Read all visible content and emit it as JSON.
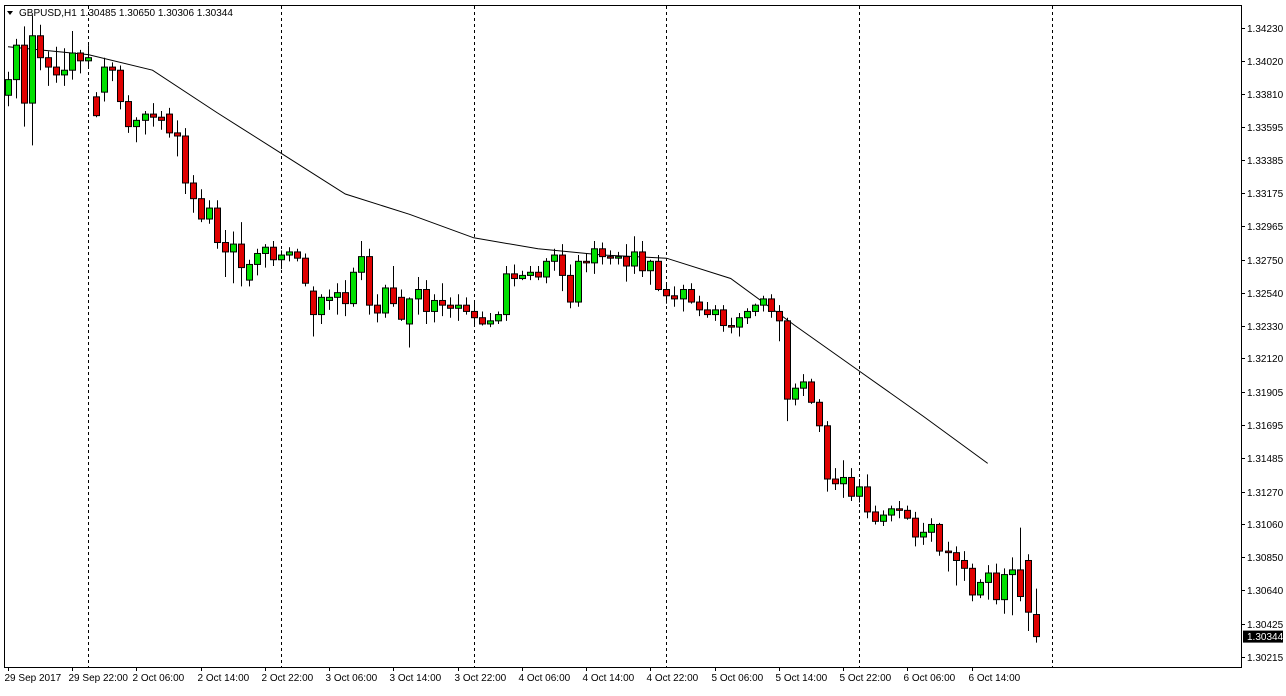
{
  "window": {
    "symbol_label": "GBPUSD,H1",
    "ohlc_label": "1.30485 1.30650 1.30306 1.30344",
    "current_price_label": "1.30344"
  },
  "chart_data": {
    "type": "candlestick",
    "symbol": "GBPUSD",
    "timeframe": "H1",
    "ylim": [
      1.3015,
      1.3437
    ],
    "price_ticks": [
      "1.34230",
      "1.34020",
      "1.33810",
      "1.33595",
      "1.33385",
      "1.33175",
      "1.32965",
      "1.32750",
      "1.32540",
      "1.32330",
      "1.32120",
      "1.31905",
      "1.31695",
      "1.31485",
      "1.31270",
      "1.31060",
      "1.30850",
      "1.30640",
      "1.30425",
      "1.30215"
    ],
    "time_ticks": [
      "29 Sep 2017",
      "29 Sep 22:00",
      "2 Oct 06:00",
      "2 Oct 14:00",
      "2 Oct 22:00",
      "3 Oct 06:00",
      "3 Oct 14:00",
      "3 Oct 22:00",
      "4 Oct 06:00",
      "4 Oct 14:00",
      "4 Oct 22:00",
      "5 Oct 06:00",
      "5 Oct 14:00",
      "5 Oct 22:00",
      "6 Oct 06:00",
      "6 Oct 14:00"
    ],
    "period_separators": [
      10,
      34,
      58,
      82,
      106,
      130
    ],
    "moving_average": {
      "indices": [
        0,
        10,
        18,
        26,
        34,
        42,
        50,
        58,
        66,
        74,
        82,
        90,
        98,
        106,
        114,
        122
      ],
      "values": [
        1.3411,
        1.3406,
        1.3396,
        1.3369,
        1.3343,
        1.3317,
        1.3304,
        1.3289,
        1.3282,
        1.3278,
        1.3276,
        1.3263,
        1.3233,
        1.3204,
        1.3175,
        1.3145
      ]
    },
    "candles": [
      [
        1.338,
        1.3395,
        1.3373,
        1.339
      ],
      [
        1.339,
        1.3416,
        1.3378,
        1.3412
      ],
      [
        1.3412,
        1.3424,
        1.336,
        1.3375
      ],
      [
        1.3375,
        1.3431,
        1.3348,
        1.3418
      ],
      [
        1.3418,
        1.3425,
        1.3396,
        1.3404
      ],
      [
        1.3404,
        1.3408,
        1.3386,
        1.3398
      ],
      [
        1.3398,
        1.3411,
        1.3388,
        1.3393
      ],
      [
        1.3393,
        1.341,
        1.3386,
        1.3396
      ],
      [
        1.3396,
        1.3421,
        1.339,
        1.3407
      ],
      [
        1.3407,
        1.3409,
        1.3394,
        1.3402
      ],
      [
        1.3402,
        1.3412,
        1.3398,
        1.3404
      ],
      [
        1.3379,
        1.3382,
        1.3366,
        1.3367
      ],
      [
        1.3382,
        1.3404,
        1.3376,
        1.3398
      ],
      [
        1.3398,
        1.3401,
        1.3389,
        1.3396
      ],
      [
        1.3396,
        1.3399,
        1.3371,
        1.3376
      ],
      [
        1.3376,
        1.338,
        1.3356,
        1.336
      ],
      [
        1.336,
        1.3366,
        1.335,
        1.3364
      ],
      [
        1.3364,
        1.337,
        1.3355,
        1.3368
      ],
      [
        1.3368,
        1.3375,
        1.336,
        1.3366
      ],
      [
        1.3366,
        1.337,
        1.3358,
        1.3364
      ],
      [
        1.3368,
        1.3372,
        1.3353,
        1.3356
      ],
      [
        1.3356,
        1.3364,
        1.3341,
        1.3354
      ],
      [
        1.3354,
        1.3359,
        1.3317,
        1.3324
      ],
      [
        1.3324,
        1.3329,
        1.3305,
        1.3314
      ],
      [
        1.3314,
        1.332,
        1.3299,
        1.3301
      ],
      [
        1.3301,
        1.3313,
        1.3298,
        1.3308
      ],
      [
        1.3308,
        1.3313,
        1.3282,
        1.3286
      ],
      [
        1.3286,
        1.3294,
        1.3264,
        1.328
      ],
      [
        1.328,
        1.3293,
        1.326,
        1.3285
      ],
      [
        1.3285,
        1.3299,
        1.3258,
        1.327
      ],
      [
        1.3262,
        1.3275,
        1.3258,
        1.3272
      ],
      [
        1.3272,
        1.3282,
        1.3265,
        1.3279
      ],
      [
        1.3279,
        1.3285,
        1.327,
        1.3283
      ],
      [
        1.3283,
        1.3287,
        1.3271,
        1.3275
      ],
      [
        1.3275,
        1.3281,
        1.3269,
        1.3278
      ],
      [
        1.3278,
        1.3283,
        1.3274,
        1.328
      ],
      [
        1.328,
        1.3282,
        1.3274,
        1.3276
      ],
      [
        1.3276,
        1.3279,
        1.3258,
        1.326
      ],
      [
        1.3255,
        1.3258,
        1.3226,
        1.324
      ],
      [
        1.324,
        1.3253,
        1.3234,
        1.3251
      ],
      [
        1.3249,
        1.3256,
        1.3243,
        1.3251
      ],
      [
        1.3251,
        1.326,
        1.324,
        1.3254
      ],
      [
        1.3254,
        1.3262,
        1.3239,
        1.3247
      ],
      [
        1.3247,
        1.327,
        1.3245,
        1.3267
      ],
      [
        1.3267,
        1.3287,
        1.3262,
        1.3277
      ],
      [
        1.3277,
        1.3282,
        1.324,
        1.3246
      ],
      [
        1.3246,
        1.3253,
        1.3235,
        1.3241
      ],
      [
        1.3241,
        1.3259,
        1.3238,
        1.3257
      ],
      [
        1.3257,
        1.3271,
        1.3245,
        1.3247
      ],
      [
        1.3251,
        1.3256,
        1.3236,
        1.3237
      ],
      [
        1.3234,
        1.3251,
        1.3219,
        1.325
      ],
      [
        1.325,
        1.3264,
        1.324,
        1.3256
      ],
      [
        1.3256,
        1.3262,
        1.3234,
        1.3242
      ],
      [
        1.3242,
        1.3253,
        1.3235,
        1.3249
      ],
      [
        1.3249,
        1.326,
        1.3239,
        1.3246
      ],
      [
        1.3246,
        1.3251,
        1.3238,
        1.3244
      ],
      [
        1.3244,
        1.3253,
        1.3236,
        1.3246
      ],
      [
        1.3246,
        1.3251,
        1.324,
        1.3242
      ],
      [
        1.3242,
        1.3249,
        1.3234,
        1.3238
      ],
      [
        1.3238,
        1.3242,
        1.3233,
        1.3234
      ],
      [
        1.3234,
        1.3241,
        1.3232,
        1.3236
      ],
      [
        1.3236,
        1.3242,
        1.3234,
        1.324
      ],
      [
        1.324,
        1.3271,
        1.3236,
        1.3266
      ],
      [
        1.3266,
        1.3272,
        1.3258,
        1.3263
      ],
      [
        1.3263,
        1.3268,
        1.3262,
        1.3265
      ],
      [
        1.3265,
        1.3271,
        1.3262,
        1.3267
      ],
      [
        1.3267,
        1.3271,
        1.3262,
        1.3264
      ],
      [
        1.3264,
        1.3276,
        1.326,
        1.3274
      ],
      [
        1.3274,
        1.3282,
        1.3268,
        1.3278
      ],
      [
        1.3278,
        1.3285,
        1.3255,
        1.3265
      ],
      [
        1.3265,
        1.3272,
        1.3244,
        1.3248
      ],
      [
        1.3248,
        1.3278,
        1.3245,
        1.3274
      ],
      [
        1.3274,
        1.3279,
        1.3267,
        1.3273
      ],
      [
        1.3273,
        1.3287,
        1.3266,
        1.3282
      ],
      [
        1.3282,
        1.3286,
        1.3272,
        1.3277
      ],
      [
        1.3277,
        1.3281,
        1.3272,
        1.3276
      ],
      [
        1.3276,
        1.328,
        1.3272,
        1.3277
      ],
      [
        1.3277,
        1.3285,
        1.3261,
        1.3271
      ],
      [
        1.3271,
        1.329,
        1.3266,
        1.328
      ],
      [
        1.328,
        1.3287,
        1.3264,
        1.3268
      ],
      [
        1.3268,
        1.3275,
        1.3259,
        1.3274
      ],
      [
        1.3274,
        1.3278,
        1.3255,
        1.3256
      ],
      [
        1.3256,
        1.3259,
        1.3247,
        1.3252
      ],
      [
        1.3252,
        1.3258,
        1.3245,
        1.325
      ],
      [
        1.325,
        1.3259,
        1.3242,
        1.3256
      ],
      [
        1.3256,
        1.326,
        1.3247,
        1.3248
      ],
      [
        1.3248,
        1.3252,
        1.3239,
        1.3243
      ],
      [
        1.3243,
        1.3248,
        1.3238,
        1.324
      ],
      [
        1.324,
        1.3246,
        1.3236,
        1.3243
      ],
      [
        1.3243,
        1.3246,
        1.3229,
        1.3233
      ],
      [
        1.3233,
        1.3238,
        1.3228,
        1.3232
      ],
      [
        1.3232,
        1.3241,
        1.3226,
        1.3238
      ],
      [
        1.3238,
        1.3244,
        1.3234,
        1.3242
      ],
      [
        1.3242,
        1.3247,
        1.3239,
        1.3246
      ],
      [
        1.3246,
        1.3252,
        1.3242,
        1.325
      ],
      [
        1.325,
        1.3253,
        1.3238,
        1.3242
      ],
      [
        1.3242,
        1.3246,
        1.3223,
        1.3236
      ],
      [
        1.3236,
        1.3238,
        1.3172,
        1.3186
      ],
      [
        1.3186,
        1.3196,
        1.3182,
        1.3193
      ],
      [
        1.3193,
        1.3202,
        1.3188,
        1.3197
      ],
      [
        1.3197,
        1.3199,
        1.3183,
        1.3184
      ],
      [
        1.3184,
        1.3186,
        1.3165,
        1.3169
      ],
      [
        1.3169,
        1.3172,
        1.3127,
        1.3135
      ],
      [
        1.3135,
        1.3142,
        1.3128,
        1.3132
      ],
      [
        1.3132,
        1.3147,
        1.3123,
        1.3136
      ],
      [
        1.3136,
        1.3142,
        1.3121,
        1.3124
      ],
      [
        1.3124,
        1.3135,
        1.312,
        1.313
      ],
      [
        1.313,
        1.3138,
        1.311,
        1.3114
      ],
      [
        1.3114,
        1.3118,
        1.3106,
        1.3108
      ],
      [
        1.3108,
        1.3115,
        1.3105,
        1.3112
      ],
      [
        1.3112,
        1.3118,
        1.3108,
        1.3116
      ],
      [
        1.3116,
        1.3121,
        1.311,
        1.3115
      ],
      [
        1.3115,
        1.3118,
        1.3109,
        1.311
      ],
      [
        1.311,
        1.3114,
        1.3092,
        1.3098
      ],
      [
        1.3098,
        1.3107,
        1.3093,
        1.3101
      ],
      [
        1.3101,
        1.311,
        1.3095,
        1.3106
      ],
      [
        1.3106,
        1.3107,
        1.3086,
        1.3089
      ],
      [
        1.3089,
        1.3095,
        1.3076,
        1.3088
      ],
      [
        1.3088,
        1.3092,
        1.3067,
        1.3083
      ],
      [
        1.3083,
        1.3089,
        1.307,
        1.3078
      ],
      [
        1.3078,
        1.3081,
        1.3057,
        1.3061
      ],
      [
        1.3061,
        1.3071,
        1.3059,
        1.3069
      ],
      [
        1.3069,
        1.308,
        1.3058,
        1.3075
      ],
      [
        1.3075,
        1.3081,
        1.3055,
        1.3058
      ],
      [
        1.3058,
        1.3078,
        1.3049,
        1.3074
      ],
      [
        1.3074,
        1.3085,
        1.3048,
        1.3077
      ],
      [
        1.3077,
        1.3104,
        1.3057,
        1.306
      ],
      [
        1.3083,
        1.3087,
        1.3038,
        1.305
      ],
      [
        1.30485,
        1.3065,
        1.30306,
        1.30344
      ]
    ]
  }
}
